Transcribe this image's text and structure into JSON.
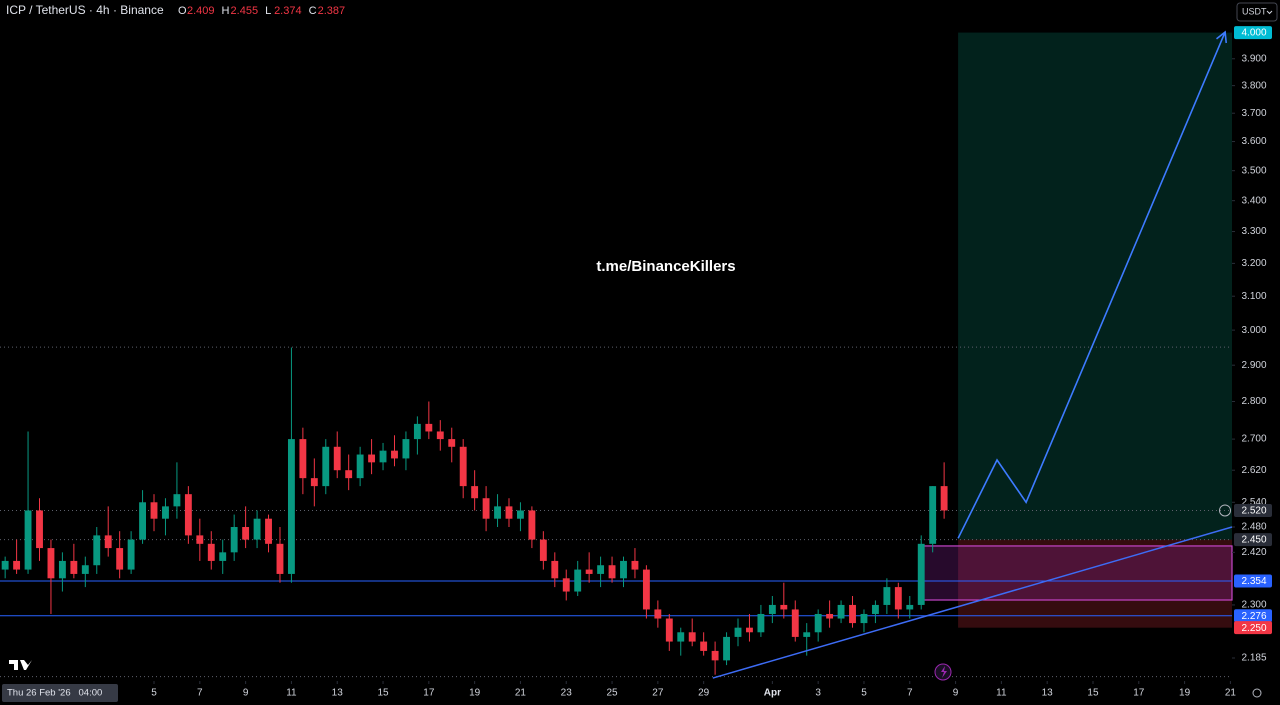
{
  "chart_data": {
    "type": "candlestick",
    "title": "ICP / TetherUS · 4h · Binance",
    "ohlc": [
      {
        "label": "O",
        "value": 2.409
      },
      {
        "label": "H",
        "value": 2.455
      },
      {
        "label": "L",
        "value": 2.374
      },
      {
        "label": "C",
        "value": 2.387
      }
    ],
    "currency": "USDT",
    "watermark": "t.me/BinanceKillers",
    "crosshair_label": "Thu 26 Feb '26   04:00",
    "log_scale": true,
    "up_color": "#089981",
    "down_color": "#f23645",
    "x": [
      -1.5,
      -1,
      -0.5,
      0,
      0.5,
      1,
      1.5,
      2,
      2.5,
      3,
      3.5,
      4,
      4.5,
      5,
      5.5,
      6,
      6.5,
      7,
      7.5,
      8,
      8.5,
      9,
      9.5,
      10,
      10.5,
      11,
      11.5,
      12,
      12.5,
      13,
      13.5,
      14,
      14.5,
      15,
      15.5,
      16,
      16.5,
      17,
      17.5,
      18,
      18.5,
      19,
      19.5,
      20,
      20.5,
      21,
      21.5,
      22,
      22.5,
      23,
      23.5,
      24,
      24.5,
      25,
      25.5,
      26,
      26.5,
      27,
      27.5,
      28,
      28.5,
      29,
      29.5,
      30,
      30.5,
      31,
      31.5,
      32,
      32.5,
      33,
      33.5,
      34,
      34.5,
      35,
      35.5,
      36,
      36.5,
      37,
      37.5,
      38,
      38.5,
      39,
      39.5
    ],
    "open": [
      2.38,
      2.4,
      2.38,
      2.52,
      2.43,
      2.36,
      2.4,
      2.37,
      2.39,
      2.46,
      2.43,
      2.38,
      2.45,
      2.54,
      2.5,
      2.53,
      2.56,
      2.46,
      2.44,
      2.4,
      2.42,
      2.48,
      2.45,
      2.5,
      2.44,
      2.37,
      2.7,
      2.6,
      2.58,
      2.68,
      2.62,
      2.6,
      2.66,
      2.64,
      2.67,
      2.65,
      2.7,
      2.74,
      2.72,
      2.7,
      2.68,
      2.58,
      2.55,
      2.5,
      2.53,
      2.5,
      2.52,
      2.45,
      2.4,
      2.36,
      2.33,
      2.38,
      2.37,
      2.39,
      2.36,
      2.4,
      2.38,
      2.29,
      2.27,
      2.22,
      2.24,
      2.22,
      2.2,
      2.18,
      2.23,
      2.25,
      2.24,
      2.28,
      2.3,
      2.29,
      2.23,
      2.24,
      2.28,
      2.27,
      2.3,
      2.26,
      2.28,
      2.3,
      2.34,
      2.29,
      2.3,
      2.44,
      2.58
    ],
    "high": [
      2.41,
      2.45,
      2.72,
      2.55,
      2.45,
      2.42,
      2.44,
      2.41,
      2.48,
      2.53,
      2.47,
      2.47,
      2.57,
      2.56,
      2.55,
      2.64,
      2.58,
      2.5,
      2.47,
      2.45,
      2.51,
      2.53,
      2.52,
      2.51,
      2.48,
      2.95,
      2.73,
      2.65,
      2.7,
      2.72,
      2.66,
      2.68,
      2.7,
      2.69,
      2.71,
      2.72,
      2.76,
      2.8,
      2.75,
      2.73,
      2.7,
      2.62,
      2.58,
      2.56,
      2.55,
      2.54,
      2.53,
      2.47,
      2.42,
      2.38,
      2.4,
      2.42,
      2.41,
      2.41,
      2.41,
      2.43,
      2.39,
      2.31,
      2.28,
      2.25,
      2.27,
      2.24,
      2.22,
      2.24,
      2.27,
      2.28,
      2.3,
      2.32,
      2.35,
      2.31,
      2.26,
      2.29,
      2.31,
      2.31,
      2.32,
      2.29,
      2.31,
      2.36,
      2.35,
      2.32,
      2.46,
      2.58,
      2.64
    ],
    "low": [
      2.36,
      2.37,
      2.37,
      2.4,
      2.28,
      2.33,
      2.36,
      2.34,
      2.37,
      2.41,
      2.36,
      2.37,
      2.44,
      2.47,
      2.46,
      2.5,
      2.44,
      2.4,
      2.38,
      2.37,
      2.4,
      2.43,
      2.43,
      2.42,
      2.35,
      2.35,
      2.56,
      2.53,
      2.56,
      2.6,
      2.57,
      2.58,
      2.61,
      2.62,
      2.63,
      2.62,
      2.66,
      2.7,
      2.67,
      2.64,
      2.55,
      2.52,
      2.47,
      2.48,
      2.48,
      2.47,
      2.43,
      2.38,
      2.34,
      2.31,
      2.32,
      2.35,
      2.34,
      2.35,
      2.34,
      2.36,
      2.27,
      2.25,
      2.2,
      2.19,
      2.21,
      2.19,
      2.15,
      2.17,
      2.21,
      2.22,
      2.23,
      2.26,
      2.27,
      2.22,
      2.19,
      2.22,
      2.25,
      2.26,
      2.25,
      2.24,
      2.26,
      2.28,
      2.27,
      2.27,
      2.29,
      2.42,
      2.5
    ],
    "close": [
      2.4,
      2.38,
      2.52,
      2.43,
      2.36,
      2.4,
      2.37,
      2.39,
      2.46,
      2.43,
      2.38,
      2.45,
      2.54,
      2.5,
      2.53,
      2.56,
      2.46,
      2.44,
      2.4,
      2.42,
      2.48,
      2.45,
      2.5,
      2.44,
      2.37,
      2.7,
      2.6,
      2.58,
      2.68,
      2.62,
      2.6,
      2.66,
      2.64,
      2.67,
      2.65,
      2.7,
      2.74,
      2.72,
      2.7,
      2.68,
      2.58,
      2.55,
      2.5,
      2.53,
      2.5,
      2.52,
      2.45,
      2.4,
      2.36,
      2.33,
      2.38,
      2.37,
      2.39,
      2.36,
      2.4,
      2.38,
      2.29,
      2.27,
      2.22,
      2.24,
      2.22,
      2.2,
      2.18,
      2.23,
      2.25,
      2.24,
      2.28,
      2.3,
      2.29,
      2.23,
      2.24,
      2.28,
      2.27,
      2.3,
      2.26,
      2.28,
      2.3,
      2.34,
      2.29,
      2.3,
      2.44,
      2.58,
      2.52
    ],
    "xlim": [
      -1.725,
      52.07
    ],
    "xticks": [
      5,
      7,
      9,
      11,
      13,
      15,
      17,
      19,
      21,
      23,
      25,
      27,
      29,
      {
        "value": 32,
        "label": "Apr"
      },
      {
        "value": 34,
        "label": "3"
      },
      {
        "value": 36,
        "label": "5"
      },
      {
        "value": 38,
        "label": "7"
      },
      {
        "value": 40,
        "label": "9"
      },
      {
        "value": 42,
        "label": "11"
      },
      {
        "value": 44,
        "label": "13"
      },
      {
        "value": 46,
        "label": "15"
      },
      {
        "value": 48,
        "label": "17"
      },
      {
        "value": 50,
        "label": "19"
      },
      {
        "value": 52,
        "label": "21"
      }
    ],
    "ylim": [
      2.139,
      4.128
    ],
    "yticks": [
      2.185,
      {
        "value": 2.3,
        "label": "2.300"
      },
      {
        "value": 2.42,
        "label": "2.420"
      },
      {
        "value": 2.48,
        "label": "2.480"
      },
      {
        "value": 2.54,
        "label": "2.540"
      },
      {
        "value": 2.62,
        "label": "2.620"
      },
      {
        "value": 2.7,
        "label": "2.700"
      },
      {
        "value": 2.8,
        "label": "2.800"
      },
      {
        "value": 2.9,
        "label": "2.900"
      },
      {
        "value": 3,
        "label": "3.000"
      },
      {
        "value": 3.1,
        "label": "3.100"
      },
      {
        "value": 3.2,
        "label": "3.200"
      },
      {
        "value": 3.3,
        "label": "3.300"
      },
      {
        "value": 3.4,
        "label": "3.400"
      },
      {
        "value": 3.5,
        "label": "3.500"
      },
      {
        "value": 3.6,
        "label": "3.600"
      },
      {
        "value": 3.7,
        "label": "3.700"
      },
      {
        "value": 3.8,
        "label": "3.800"
      },
      {
        "value": 3.9,
        "label": "3.900"
      }
    ],
    "price_labels": [
      {
        "value": 4,
        "label": "4.000",
        "color": "#00bcd4"
      },
      {
        "value": 2.52,
        "label": "2.520",
        "color": "#2a2e39"
      },
      {
        "value": 2.45,
        "label": "2.450",
        "color": "#2a2e39"
      },
      {
        "value": 2.354,
        "color": "#2962ff"
      },
      {
        "value": 2.276,
        "color": "#2962ff"
      },
      {
        "value": 2.25,
        "label": "2.250",
        "color": "#f23645"
      }
    ],
    "dotted_levels": [
      2.951,
      2.45,
      2.146,
      2.52
    ],
    "blue_levels": [
      2.354,
      2.276
    ],
    "position": {
      "x": 40.11,
      "entry": 2.45,
      "target": 4,
      "stop": 2.25
    },
    "zone": {
      "x": [
        38.45,
        52.07
      ],
      "y": [
        2.435,
        2.311
      ]
    },
    "trendline": {
      "x": [
        29.4,
        52.07
      ],
      "y": [
        2.143,
        2.48
      ]
    },
    "projection": {
      "x": [
        40.11,
        41.81,
        43.08,
        51.77
      ],
      "y": [
        2.453,
        2.646,
        2.54,
        4.002
      ]
    }
  }
}
